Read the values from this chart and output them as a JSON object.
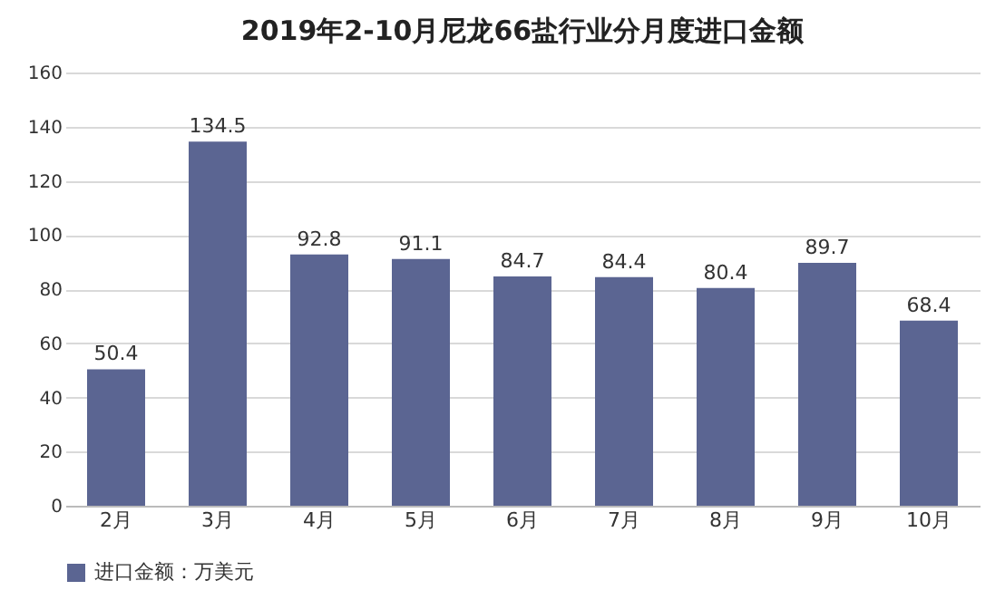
{
  "chart_data": {
    "type": "bar",
    "title": "2019年2-10月尼龙66盐行业分月度进口金额",
    "categories": [
      "2月",
      "3月",
      "4月",
      "5月",
      "6月",
      "7月",
      "8月",
      "9月",
      "10月"
    ],
    "series": [
      {
        "name": "进口金额：万美元",
        "color": "#5b6592",
        "values": [
          50.4,
          134.5,
          92.8,
          91.1,
          84.7,
          84.4,
          80.4,
          89.7,
          68.4
        ]
      }
    ],
    "ylim": [
      0,
      160
    ],
    "yticks": [
      0,
      20,
      40,
      60,
      80,
      100,
      120,
      140,
      160
    ],
    "grid": "y",
    "legend": "bottom",
    "data_labels": true
  }
}
